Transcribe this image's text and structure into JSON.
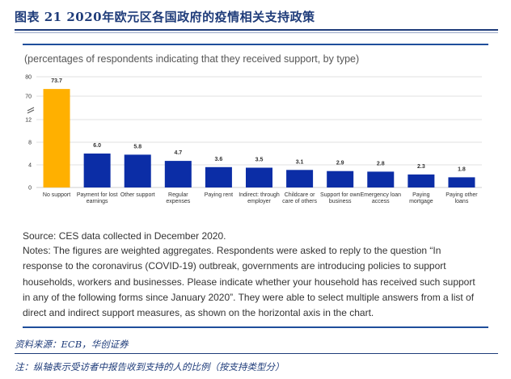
{
  "figure": {
    "title": "图表 21   2020年欧元区各国政府的疫情相关支持政策"
  },
  "chart_data": {
    "type": "bar",
    "title": "",
    "subtitle": "(percentages of respondents indicating that they received support, by type)",
    "ylabel": "",
    "xlabel": "",
    "y_ticks": [
      "0",
      "4",
      "8",
      "12",
      "70",
      "80"
    ],
    "axis_break": "between 12 and 70",
    "categories": [
      [
        "No support"
      ],
      [
        "Payment for lost",
        "earnings"
      ],
      [
        "Other support"
      ],
      [
        "Regular",
        "expenses"
      ],
      [
        "Paying rent"
      ],
      [
        "Indirect: through",
        "employer"
      ],
      [
        "Childcare or",
        "care of others"
      ],
      [
        "Support for own",
        "business"
      ],
      [
        "Emergency loan",
        "access"
      ],
      [
        "Paying",
        "mortgage"
      ],
      [
        "Paying other",
        "loans"
      ]
    ],
    "values": [
      73.7,
      6.0,
      5.8,
      4.7,
      3.6,
      3.5,
      3.1,
      2.9,
      2.8,
      2.3,
      1.8
    ],
    "value_labels": [
      "73.7",
      "6.0",
      "5.8",
      "4.7",
      "3.6",
      "3.5",
      "3.1",
      "2.9",
      "2.8",
      "2.3",
      "1.8"
    ],
    "highlight_index": 0,
    "colors": {
      "highlight": "#FFB000",
      "bar": "#0B2DA6",
      "grid": "#D9D9D9"
    }
  },
  "notes": {
    "source": "Source: CES data collected in December 2020.",
    "notes": "Notes: The figures are weighted aggregates. Respondents were asked to reply to the question “In response to the coronavirus (COVID-19) outbreak, governments are introducing policies to support households, workers and businesses. Please indicate whether your household has received such support in any of the following forms since January 2020”. They were able to select multiple answers from a list of direct and indirect support measures, as shown on the horizontal axis in the chart."
  },
  "footer": {
    "source": "资料来源：ECB，华创证券",
    "note": "注：纵轴表示受访者中报告收到支持的人的比例（按支持类型分）"
  }
}
